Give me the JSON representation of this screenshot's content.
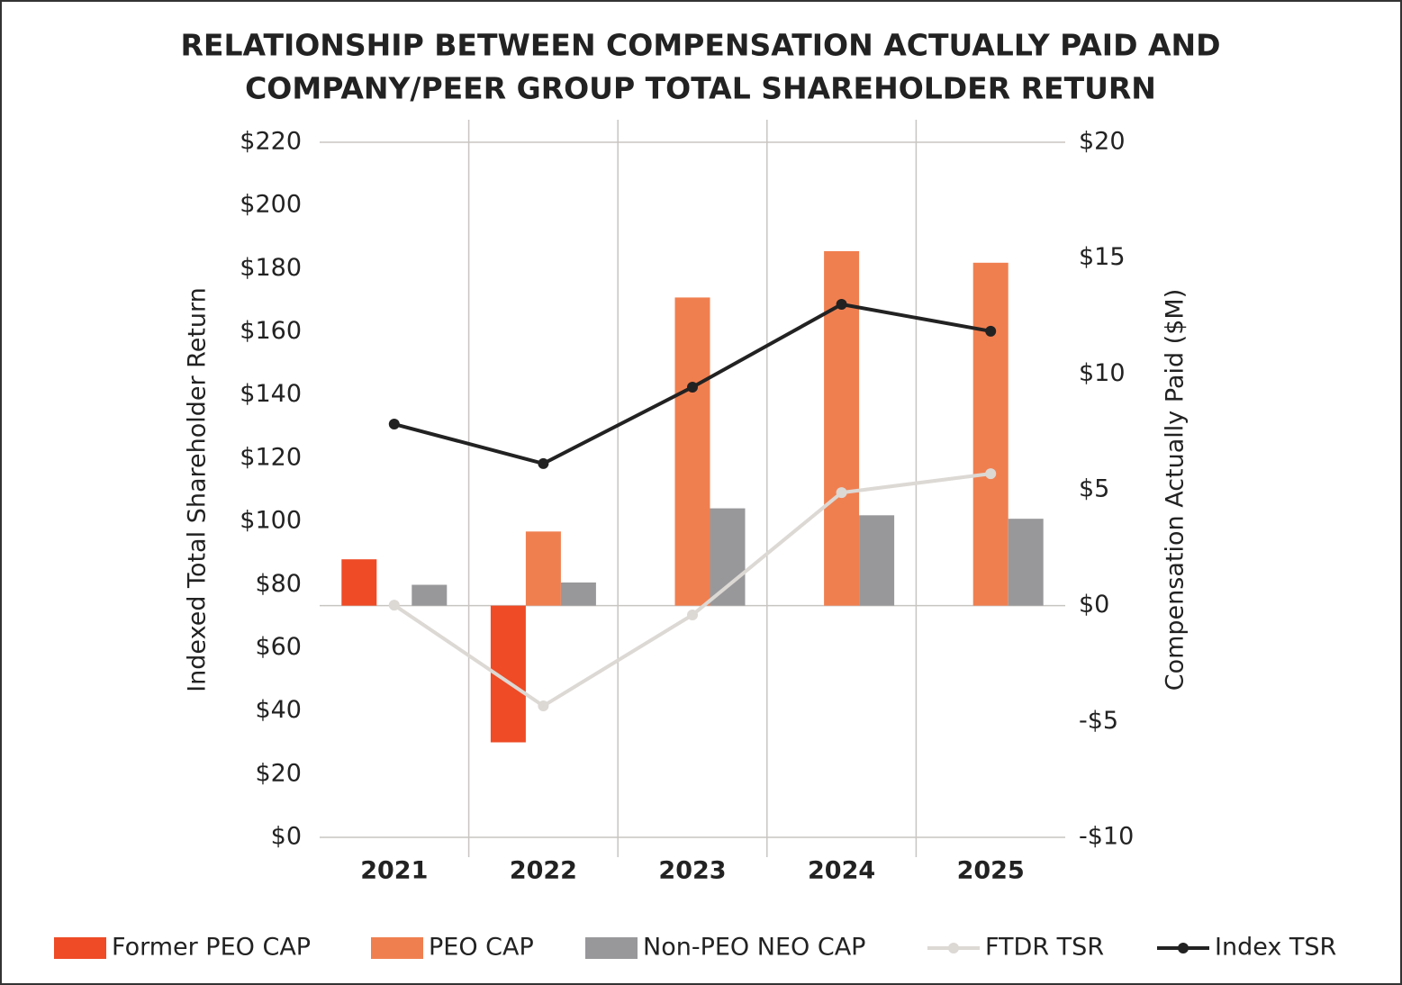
{
  "chart_data": {
    "type": "bar_line",
    "title": [
      "RELATIONSHIP BETWEEN COMPENSATION ACTUALLY PAID AND",
      "COMPANY/PEER GROUP TOTAL SHAREHOLDER RETURN"
    ],
    "ylabel": "Indexed Total Shareholder Return",
    "y2label": "Compensation Actually Paid ($M)",
    "categories": [
      "2021",
      "2022",
      "2023",
      "2024",
      "2025"
    ],
    "ylim": [
      0,
      220
    ],
    "yticks": [
      {
        "value": 0,
        "label": "$0"
      },
      {
        "value": 20,
        "label": "$20"
      },
      {
        "value": 40,
        "label": "$40"
      },
      {
        "value": 60,
        "label": "$60"
      },
      {
        "value": 80,
        "label": "$80"
      },
      {
        "value": 100,
        "label": "$100"
      },
      {
        "value": 120,
        "label": "$120"
      },
      {
        "value": 140,
        "label": "$140"
      },
      {
        "value": 160,
        "label": "$160"
      },
      {
        "value": 180,
        "label": "$180"
      },
      {
        "value": 200,
        "label": "$200"
      },
      {
        "value": 220,
        "label": "$220"
      }
    ],
    "y2lim": [
      -10,
      20
    ],
    "y2ticks": [
      {
        "value": -10,
        "label": "-$10"
      },
      {
        "value": -5,
        "label": "-$5"
      },
      {
        "value": 0,
        "label": "$0"
      },
      {
        "value": 5,
        "label": "$5"
      },
      {
        "value": 10,
        "label": "$10"
      },
      {
        "value": 15,
        "label": "$15"
      },
      {
        "value": 20,
        "label": "$20"
      }
    ],
    "series": [
      {
        "name": "Former PEO CAP",
        "type": "bar",
        "axis": "y2",
        "color": "#ee4b26",
        "values": [
          2.0,
          -5.9,
          null,
          null,
          null
        ]
      },
      {
        "name": "PEO CAP",
        "type": "bar",
        "axis": "y2",
        "color": "#f07f50",
        "values": [
          null,
          3.2,
          13.3,
          15.3,
          14.8
        ]
      },
      {
        "name": "Non-PEO NEO CAP",
        "type": "bar",
        "axis": "y2",
        "color": "#98989b",
        "values": [
          0.9,
          1.0,
          4.2,
          3.9,
          3.75
        ]
      },
      {
        "name": "FTDR TSR",
        "type": "line",
        "color": "#dcd8d4",
        "values": [
          73.5,
          41.6,
          70.4,
          109.1,
          115.1
        ]
      },
      {
        "name": "Index TSR",
        "type": "line",
        "color": "#222222",
        "values": [
          130.8,
          118.3,
          142.5,
          168.7,
          160.2
        ]
      }
    ]
  }
}
